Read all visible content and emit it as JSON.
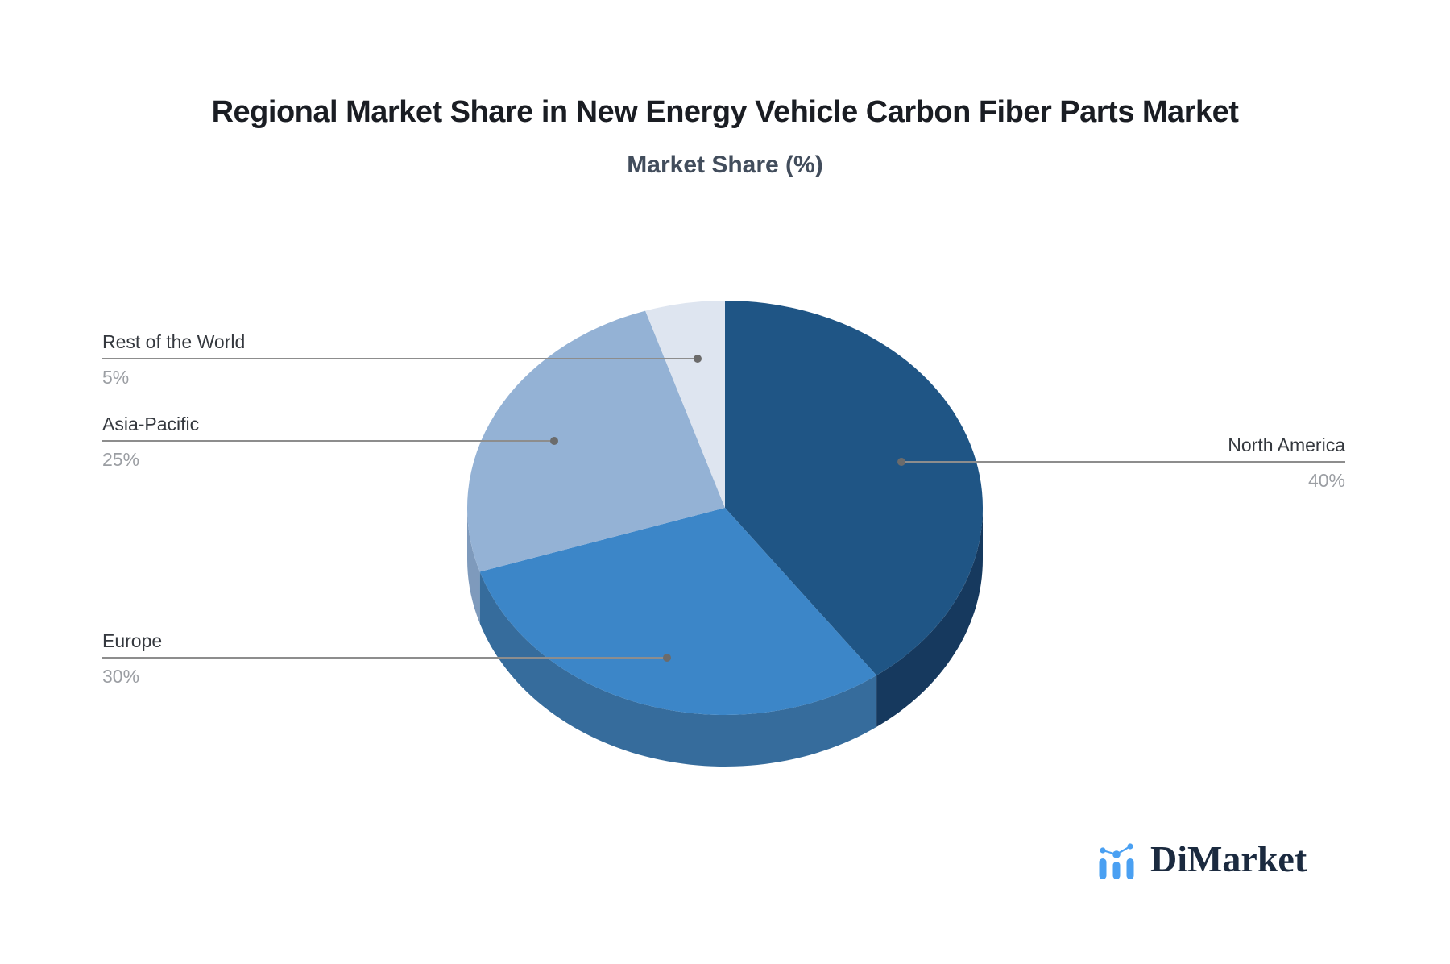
{
  "chart_data": {
    "type": "pie",
    "style": "3d",
    "title": "Regional Market Share in New Energy Vehicle Carbon Fiber Parts Market",
    "subtitle": "Market Share (%)",
    "unit": "%",
    "start_angle_deg": 0,
    "direction": "clockwise",
    "legend_position": "none",
    "label_style": "leader-lines",
    "categories": [
      "North America",
      "Europe",
      "Asia-Pacific",
      "Rest of the World"
    ],
    "values": [
      40,
      30,
      25,
      5
    ],
    "slices": [
      {
        "label": "North America",
        "value": 40,
        "pct_label": "40%",
        "color": "#1F5585",
        "side_color": "#16395E"
      },
      {
        "label": "Europe",
        "value": 30,
        "pct_label": "30%",
        "color": "#3C86C8",
        "side_color": "#366C9C"
      },
      {
        "label": "Asia-Pacific",
        "value": 25,
        "pct_label": "25%",
        "color": "#94B2D5",
        "side_color": "#7E9ABC"
      },
      {
        "label": "Rest of the World",
        "value": 5,
        "pct_label": "5%",
        "color": "#DEE5F0",
        "side_color": "#C2CBD9"
      }
    ],
    "leader_line_color": "#8D8D8D",
    "leader_dot_color": "#6B6B6B"
  },
  "branding": {
    "logo_text": "DiMarket",
    "logo_accent_color": "#4AA0F2"
  }
}
